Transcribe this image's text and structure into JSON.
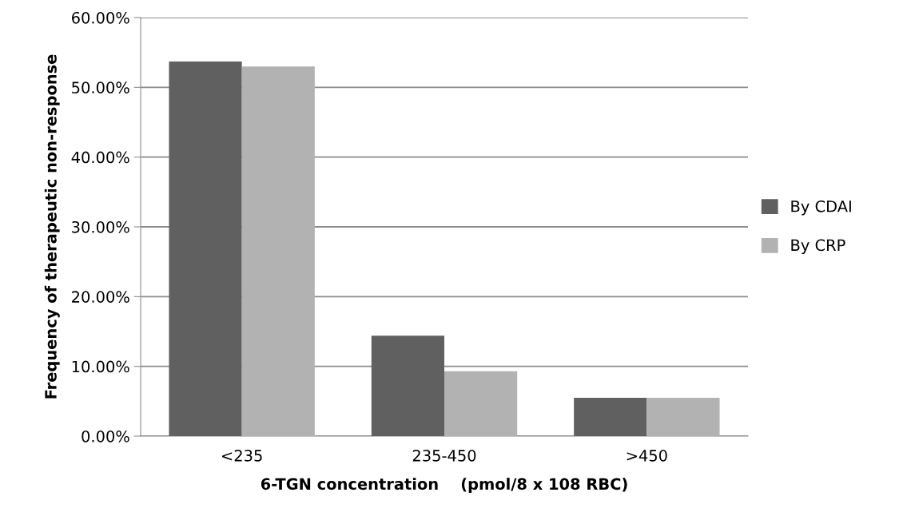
{
  "chart_data": {
    "type": "bar",
    "xlabel": "6-TGN concentration    (pmol/8 x 108 RBC)",
    "ylabel": "Frequency of therapeutic non-response",
    "categories": [
      "<235",
      "235-450",
      ">450"
    ],
    "series": [
      {
        "name": "By CDAI",
        "color": "#606060",
        "values": [
          53.7,
          14.4,
          5.5
        ]
      },
      {
        "name": "By CRP",
        "color": "#b2b2b2",
        "values": [
          53.0,
          9.3,
          5.5
        ]
      }
    ],
    "ylim": [
      0,
      60
    ],
    "yticks": [
      {
        "value": 0,
        "label": "0.00%"
      },
      {
        "value": 10,
        "label": "10.00%"
      },
      {
        "value": 20,
        "label": "20.00%"
      },
      {
        "value": 30,
        "label": "30.00%"
      },
      {
        "value": 40,
        "label": "40.00%"
      },
      {
        "value": 50,
        "label": "50.00%"
      },
      {
        "value": 60,
        "label": "60.00%"
      }
    ],
    "grid": "y",
    "legend": "right"
  }
}
